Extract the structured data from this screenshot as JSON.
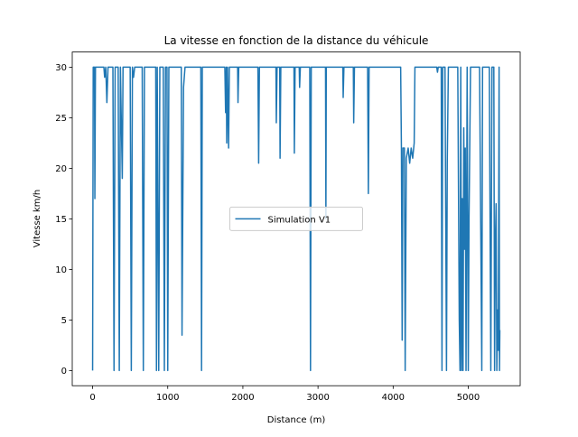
{
  "chart_data": {
    "type": "line",
    "title": "La vitesse en fonction de la distance du véhicule",
    "x_label": "Distance (m)",
    "y_label": "Vitesse km/h",
    "x": [
      0,
      8,
      25,
      30,
      38,
      150,
      160,
      175,
      190,
      205,
      270,
      285,
      300,
      340,
      355,
      370,
      395,
      405,
      500,
      515,
      530,
      545,
      560,
      660,
      675,
      690,
      840,
      850,
      860,
      880,
      895,
      940,
      955,
      970,
      990,
      1000,
      1015,
      1180,
      1190,
      1210,
      1230,
      1440,
      1450,
      1460,
      1760,
      1770,
      1780,
      1785,
      1795,
      1810,
      1820,
      1930,
      1935,
      1945,
      2200,
      2210,
      2220,
      2440,
      2445,
      2455,
      2490,
      2495,
      2505,
      2680,
      2685,
      2695,
      2750,
      2755,
      2765,
      2890,
      2900,
      2910,
      3100,
      3105,
      3110,
      3330,
      3335,
      3345,
      3470,
      3475,
      3485,
      3660,
      3670,
      3680,
      4100,
      4110,
      4120,
      4130,
      4150,
      4160,
      4175,
      4200,
      4220,
      4240,
      4260,
      4280,
      4290,
      4580,
      4590,
      4600,
      4640,
      4650,
      4660,
      4690,
      4700,
      4710,
      4720,
      4735,
      4860,
      4880,
      4890,
      4900,
      4910,
      4920,
      4930,
      4940,
      4950,
      4960,
      4970,
      4985,
      5000,
      5010,
      5030,
      5150,
      5180,
      5190,
      5280,
      5300,
      5315,
      5340,
      5350,
      5360,
      5370,
      5380,
      5390,
      5400,
      5410,
      5415,
      5420
    ],
    "series": [
      {
        "name": "Simulation V1",
        "color": "#1f77b4",
        "values": [
          0,
          30,
          30,
          17,
          30,
          30,
          29,
          30,
          26.5,
          30,
          30,
          0,
          30,
          30,
          0,
          30,
          19,
          30,
          30,
          0,
          30,
          29,
          30,
          30,
          0,
          30,
          30,
          0,
          30,
          0,
          30,
          30,
          0,
          30,
          30,
          0,
          30,
          30,
          3.5,
          28,
          30,
          30,
          0,
          30,
          30,
          25.5,
          30,
          22.5,
          30,
          22,
          30,
          30,
          26.5,
          30,
          30,
          20.5,
          30,
          30,
          24.5,
          30,
          30,
          21,
          30,
          30,
          21.5,
          30,
          30,
          28,
          30,
          30,
          0,
          30,
          30,
          15,
          30,
          30,
          27,
          30,
          30,
          24.5,
          30,
          30,
          17.5,
          30,
          30,
          22,
          3,
          22,
          22,
          0,
          21,
          22,
          20.5,
          22,
          21,
          22.5,
          30,
          30,
          29.5,
          30,
          30,
          0,
          30,
          30,
          15,
          0,
          20.5,
          30,
          30,
          5,
          0,
          30,
          0,
          17,
          0,
          24,
          12,
          22,
          0,
          30,
          0,
          15,
          30,
          30,
          0,
          30,
          30,
          0,
          30,
          30,
          0,
          12.5,
          16.5,
          0,
          6,
          2,
          30,
          0,
          4
        ]
      }
    ],
    "xlim": [
      -271,
      5691
    ],
    "ylim": [
      -1.5,
      31.5
    ],
    "xticks": [
      0,
      1000,
      2000,
      3000,
      4000,
      5000
    ],
    "yticks": [
      0,
      5,
      10,
      15,
      20,
      25,
      30
    ],
    "legend": "center"
  }
}
